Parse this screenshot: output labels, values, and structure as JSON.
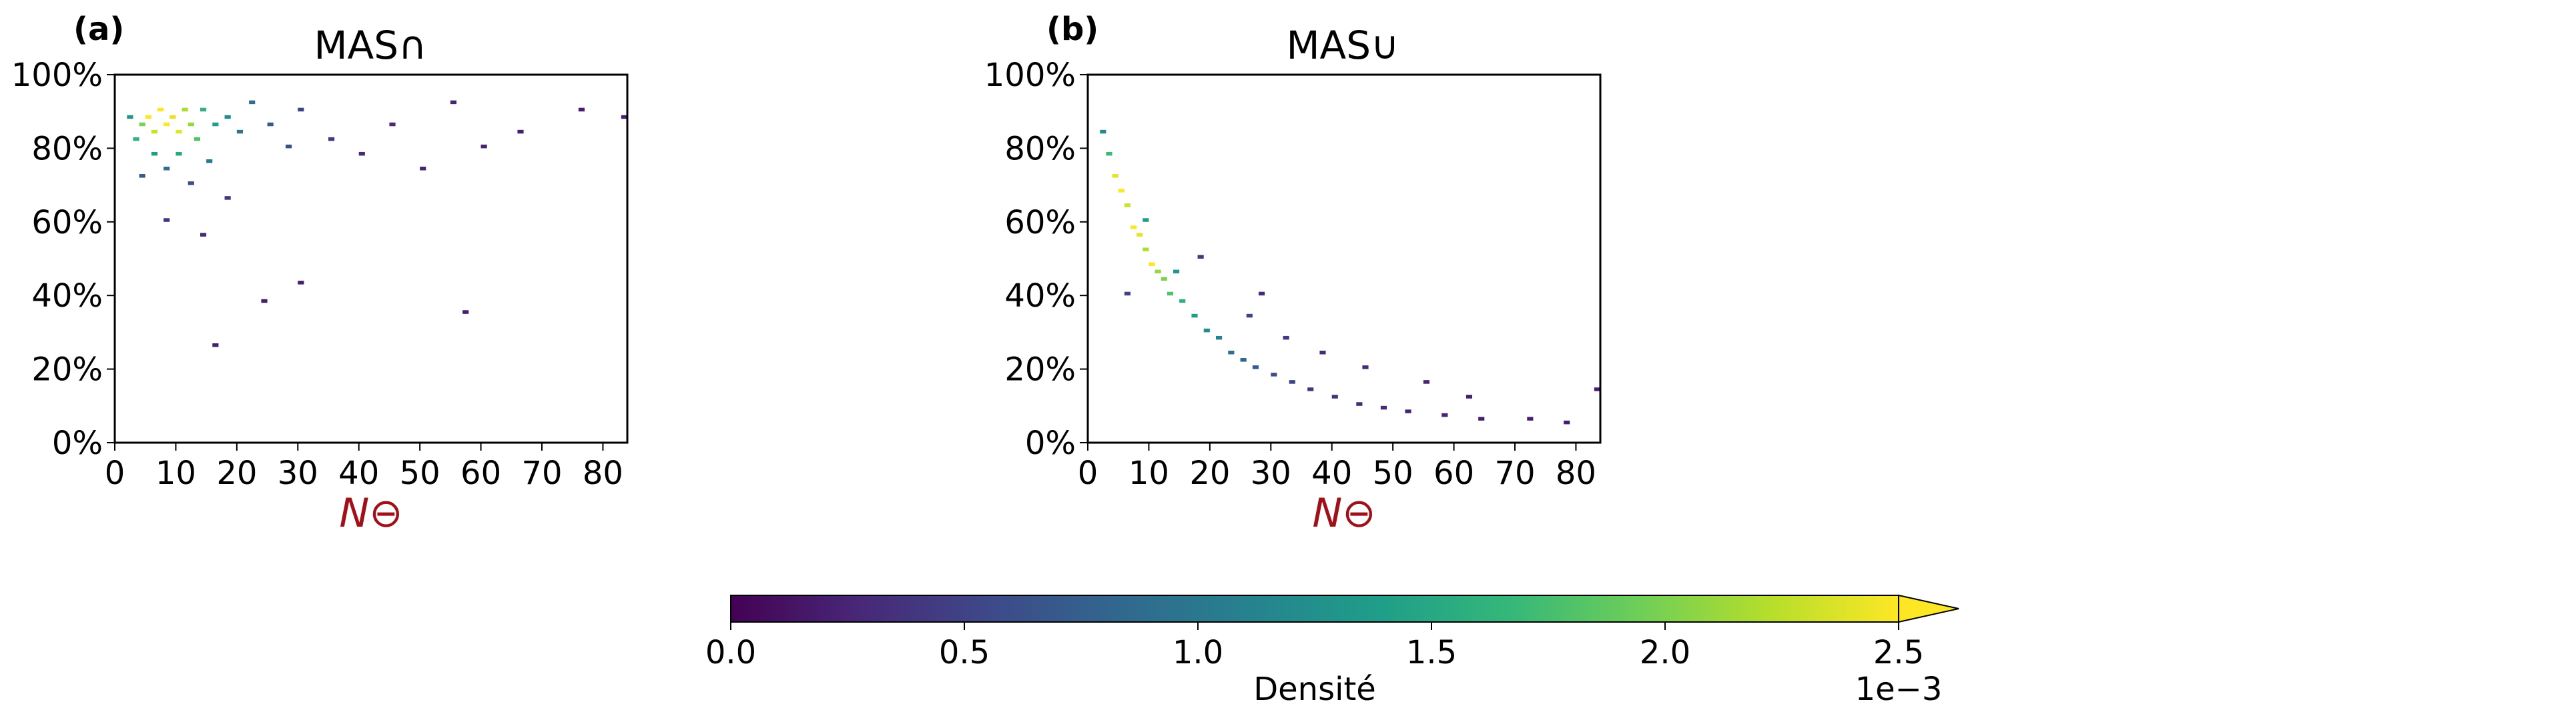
{
  "chart_data": [
    {
      "type": "heatmap",
      "panel_label": "(a)",
      "title": "MAS∩",
      "xlabel": "N⊖",
      "ylabel": "",
      "xlim": [
        0,
        84
      ],
      "ylim": [
        0,
        100
      ],
      "xticks": [
        0,
        10,
        20,
        30,
        40,
        50,
        60,
        70,
        80
      ],
      "yticks": [
        0,
        20,
        40,
        60,
        80,
        100
      ],
      "ytick_labels": [
        "0%",
        "20%",
        "40%",
        "60%",
        "80%",
        "100%"
      ],
      "bin_width_x": 1,
      "bin_height_y": 1,
      "density_cells": [
        {
          "x": 5,
          "y": 88,
          "d": 2.5
        },
        {
          "x": 7,
          "y": 90,
          "d": 2.5
        },
        {
          "x": 8,
          "y": 86,
          "d": 2.5
        },
        {
          "x": 9,
          "y": 88,
          "d": 2.4
        },
        {
          "x": 10,
          "y": 84,
          "d": 2.4
        },
        {
          "x": 6,
          "y": 84,
          "d": 2.3
        },
        {
          "x": 11,
          "y": 90,
          "d": 2.2
        },
        {
          "x": 12,
          "y": 86,
          "d": 2.1
        },
        {
          "x": 4,
          "y": 86,
          "d": 2.0
        },
        {
          "x": 13,
          "y": 82,
          "d": 1.8
        },
        {
          "x": 3,
          "y": 82,
          "d": 1.6
        },
        {
          "x": 14,
          "y": 90,
          "d": 1.6
        },
        {
          "x": 16,
          "y": 86,
          "d": 1.4
        },
        {
          "x": 2,
          "y": 88,
          "d": 1.3
        },
        {
          "x": 18,
          "y": 88,
          "d": 1.2
        },
        {
          "x": 10,
          "y": 78,
          "d": 1.5
        },
        {
          "x": 6,
          "y": 78,
          "d": 1.4
        },
        {
          "x": 20,
          "y": 84,
          "d": 1.0
        },
        {
          "x": 22,
          "y": 92,
          "d": 0.9
        },
        {
          "x": 15,
          "y": 76,
          "d": 1.0
        },
        {
          "x": 8,
          "y": 74,
          "d": 0.9
        },
        {
          "x": 25,
          "y": 86,
          "d": 0.7
        },
        {
          "x": 28,
          "y": 80,
          "d": 0.6
        },
        {
          "x": 4,
          "y": 72,
          "d": 0.7
        },
        {
          "x": 12,
          "y": 70,
          "d": 0.6
        },
        {
          "x": 30,
          "y": 90,
          "d": 0.5
        },
        {
          "x": 35,
          "y": 82,
          "d": 0.4
        },
        {
          "x": 18,
          "y": 66,
          "d": 0.4
        },
        {
          "x": 40,
          "y": 78,
          "d": 0.3
        },
        {
          "x": 45,
          "y": 86,
          "d": 0.3
        },
        {
          "x": 8,
          "y": 60,
          "d": 0.4
        },
        {
          "x": 14,
          "y": 56,
          "d": 0.3
        },
        {
          "x": 50,
          "y": 74,
          "d": 0.25
        },
        {
          "x": 55,
          "y": 92,
          "d": 0.25
        },
        {
          "x": 60,
          "y": 80,
          "d": 0.25
        },
        {
          "x": 66,
          "y": 84,
          "d": 0.2
        },
        {
          "x": 76,
          "y": 90,
          "d": 0.2
        },
        {
          "x": 83,
          "y": 88,
          "d": 0.2
        },
        {
          "x": 16,
          "y": 26,
          "d": 0.2
        },
        {
          "x": 57,
          "y": 35,
          "d": 0.2
        },
        {
          "x": 30,
          "y": 43,
          "d": 0.2
        },
        {
          "x": 24,
          "y": 38,
          "d": 0.2
        }
      ]
    },
    {
      "type": "heatmap",
      "panel_label": "(b)",
      "title": "MAS∪",
      "xlabel": "N⊖",
      "ylabel": "",
      "xlim": [
        0,
        84
      ],
      "ylim": [
        0,
        100
      ],
      "xticks": [
        0,
        10,
        20,
        30,
        40,
        50,
        60,
        70,
        80
      ],
      "yticks": [
        0,
        20,
        40,
        60,
        80,
        100
      ],
      "ytick_labels": [
        "0%",
        "20%",
        "40%",
        "60%",
        "80%",
        "100%"
      ],
      "bin_width_x": 1,
      "bin_height_y": 1,
      "density_cells": [
        {
          "x": 4,
          "y": 72,
          "d": 2.4
        },
        {
          "x": 5,
          "y": 68,
          "d": 2.5
        },
        {
          "x": 6,
          "y": 64,
          "d": 2.3
        },
        {
          "x": 7,
          "y": 58,
          "d": 2.5
        },
        {
          "x": 8,
          "y": 56,
          "d": 2.4
        },
        {
          "x": 9,
          "y": 52,
          "d": 2.2
        },
        {
          "x": 10,
          "y": 48,
          "d": 2.5
        },
        {
          "x": 11,
          "y": 46,
          "d": 2.1
        },
        {
          "x": 12,
          "y": 44,
          "d": 2.0
        },
        {
          "x": 13,
          "y": 40,
          "d": 1.8
        },
        {
          "x": 3,
          "y": 78,
          "d": 1.7
        },
        {
          "x": 2,
          "y": 84,
          "d": 1.2
        },
        {
          "x": 15,
          "y": 38,
          "d": 1.6
        },
        {
          "x": 17,
          "y": 34,
          "d": 1.4
        },
        {
          "x": 19,
          "y": 30,
          "d": 1.2
        },
        {
          "x": 21,
          "y": 28,
          "d": 1.1
        },
        {
          "x": 14,
          "y": 46,
          "d": 1.3
        },
        {
          "x": 9,
          "y": 60,
          "d": 1.4
        },
        {
          "x": 23,
          "y": 24,
          "d": 0.9
        },
        {
          "x": 25,
          "y": 22,
          "d": 0.8
        },
        {
          "x": 27,
          "y": 20,
          "d": 0.7
        },
        {
          "x": 30,
          "y": 18,
          "d": 0.6
        },
        {
          "x": 33,
          "y": 16,
          "d": 0.5
        },
        {
          "x": 36,
          "y": 14,
          "d": 0.4
        },
        {
          "x": 40,
          "y": 12,
          "d": 0.35
        },
        {
          "x": 44,
          "y": 10,
          "d": 0.3
        },
        {
          "x": 48,
          "y": 9,
          "d": 0.3
        },
        {
          "x": 52,
          "y": 8,
          "d": 0.25
        },
        {
          "x": 58,
          "y": 7,
          "d": 0.25
        },
        {
          "x": 64,
          "y": 6,
          "d": 0.2
        },
        {
          "x": 72,
          "y": 6,
          "d": 0.2
        },
        {
          "x": 78,
          "y": 5,
          "d": 0.2
        },
        {
          "x": 83,
          "y": 14,
          "d": 0.2
        },
        {
          "x": 26,
          "y": 34,
          "d": 0.5
        },
        {
          "x": 32,
          "y": 28,
          "d": 0.4
        },
        {
          "x": 38,
          "y": 24,
          "d": 0.3
        },
        {
          "x": 45,
          "y": 20,
          "d": 0.3
        },
        {
          "x": 55,
          "y": 16,
          "d": 0.25
        },
        {
          "x": 62,
          "y": 12,
          "d": 0.2
        },
        {
          "x": 18,
          "y": 50,
          "d": 0.4
        },
        {
          "x": 28,
          "y": 40,
          "d": 0.3
        },
        {
          "x": 6,
          "y": 40,
          "d": 0.5
        }
      ]
    }
  ],
  "colorbar": {
    "label": "Densité",
    "ticks": [
      0.0,
      0.5,
      1.0,
      1.5,
      2.0,
      2.5
    ],
    "tick_labels": [
      "0.0",
      "0.5",
      "1.0",
      "1.5",
      "2.0",
      "2.5"
    ],
    "scale_label": "1e−3",
    "vmin": 0.0,
    "vmax": 2.5,
    "extend": "max",
    "colormap": "viridis",
    "colormap_stops": [
      "#440154",
      "#482878",
      "#3e4989",
      "#31688e",
      "#26828e",
      "#1f9e89",
      "#35b779",
      "#6ece58",
      "#b5de2b",
      "#fde725"
    ]
  }
}
